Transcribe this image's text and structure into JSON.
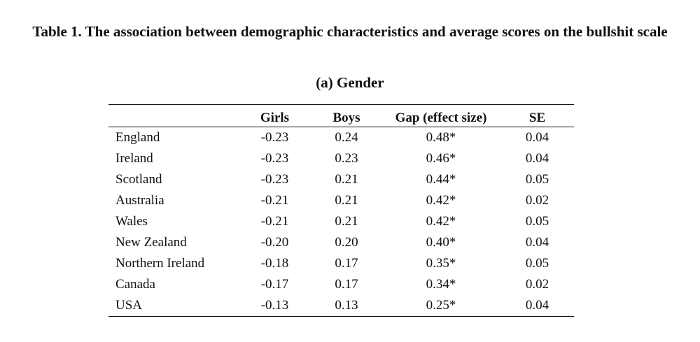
{
  "title": "Table 1. The association between demographic characteristics and average scores on the bullshit scale",
  "subtitle": "(a) Gender",
  "table": {
    "headers": [
      "",
      "Girls",
      "Boys",
      "Gap (effect size)",
      "SE"
    ],
    "rows": [
      [
        "England",
        "-0.23",
        "0.24",
        "0.48*",
        "0.04"
      ],
      [
        "Ireland",
        "-0.23",
        "0.23",
        "0.46*",
        "0.04"
      ],
      [
        "Scotland",
        "-0.23",
        "0.21",
        "0.44*",
        "0.05"
      ],
      [
        "Australia",
        "-0.21",
        "0.21",
        "0.42*",
        "0.02"
      ],
      [
        "Wales",
        "-0.21",
        "0.21",
        "0.42*",
        "0.05"
      ],
      [
        "New Zealand",
        "-0.20",
        "0.20",
        "0.40*",
        "0.04"
      ],
      [
        "Northern Ireland",
        "-0.18",
        "0.17",
        "0.35*",
        "0.05"
      ],
      [
        "Canada",
        "-0.17",
        "0.17",
        "0.34*",
        "0.02"
      ],
      [
        "USA",
        "-0.13",
        "0.13",
        "0.25*",
        "0.04"
      ]
    ]
  }
}
